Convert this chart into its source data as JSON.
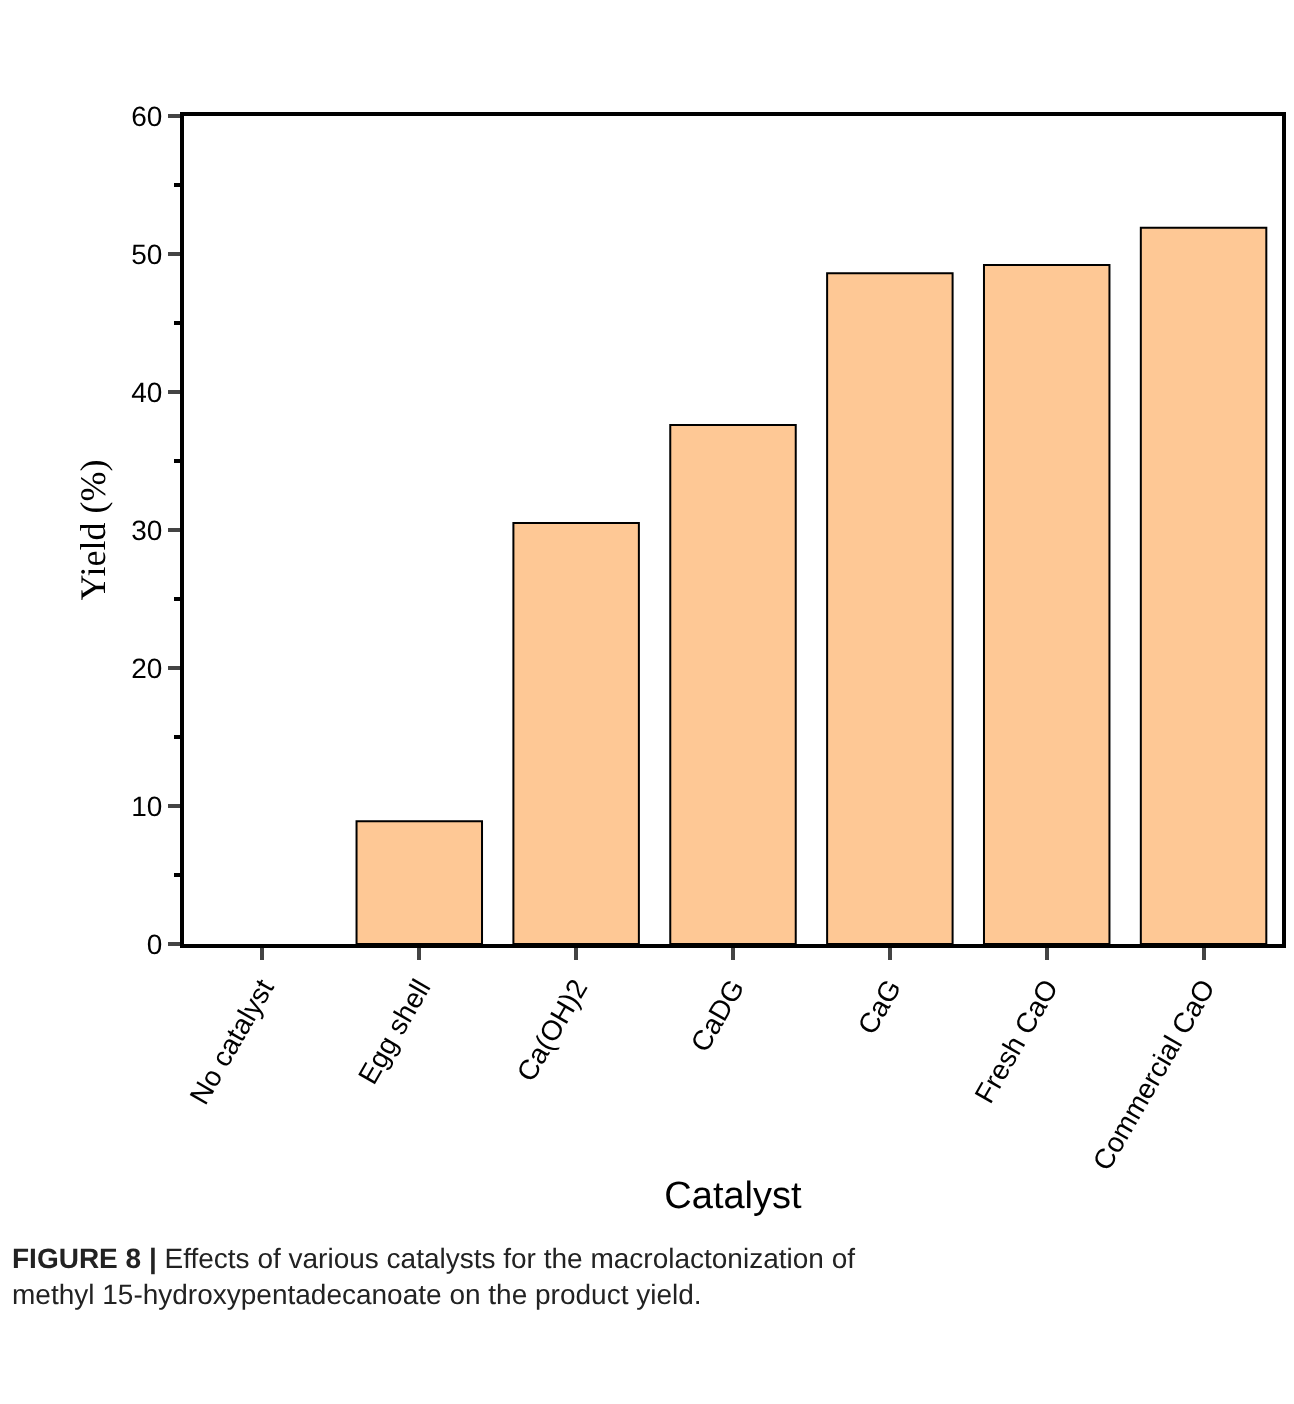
{
  "chart_data": {
    "type": "bar",
    "categories": [
      "No catalyst",
      "Egg shell",
      "Ca(OH)2",
      "CaDG",
      "CaG",
      "Fresh CaO",
      "Commercial CaO"
    ],
    "values": [
      0,
      8.9,
      30.5,
      37.6,
      48.6,
      49.2,
      51.9
    ],
    "color": "#fec895",
    "xlabel": "Catalyst",
    "ylabel": "Yield (%)",
    "ylim": [
      0,
      60
    ],
    "yticks": [
      0,
      10,
      20,
      30,
      40,
      50,
      60
    ],
    "annotations": [
      "FIGURE 8 | Effects of various catalysts for the macrolactonization of methyl 15-hydroxypentadecanoate on the product yield."
    ]
  }
}
